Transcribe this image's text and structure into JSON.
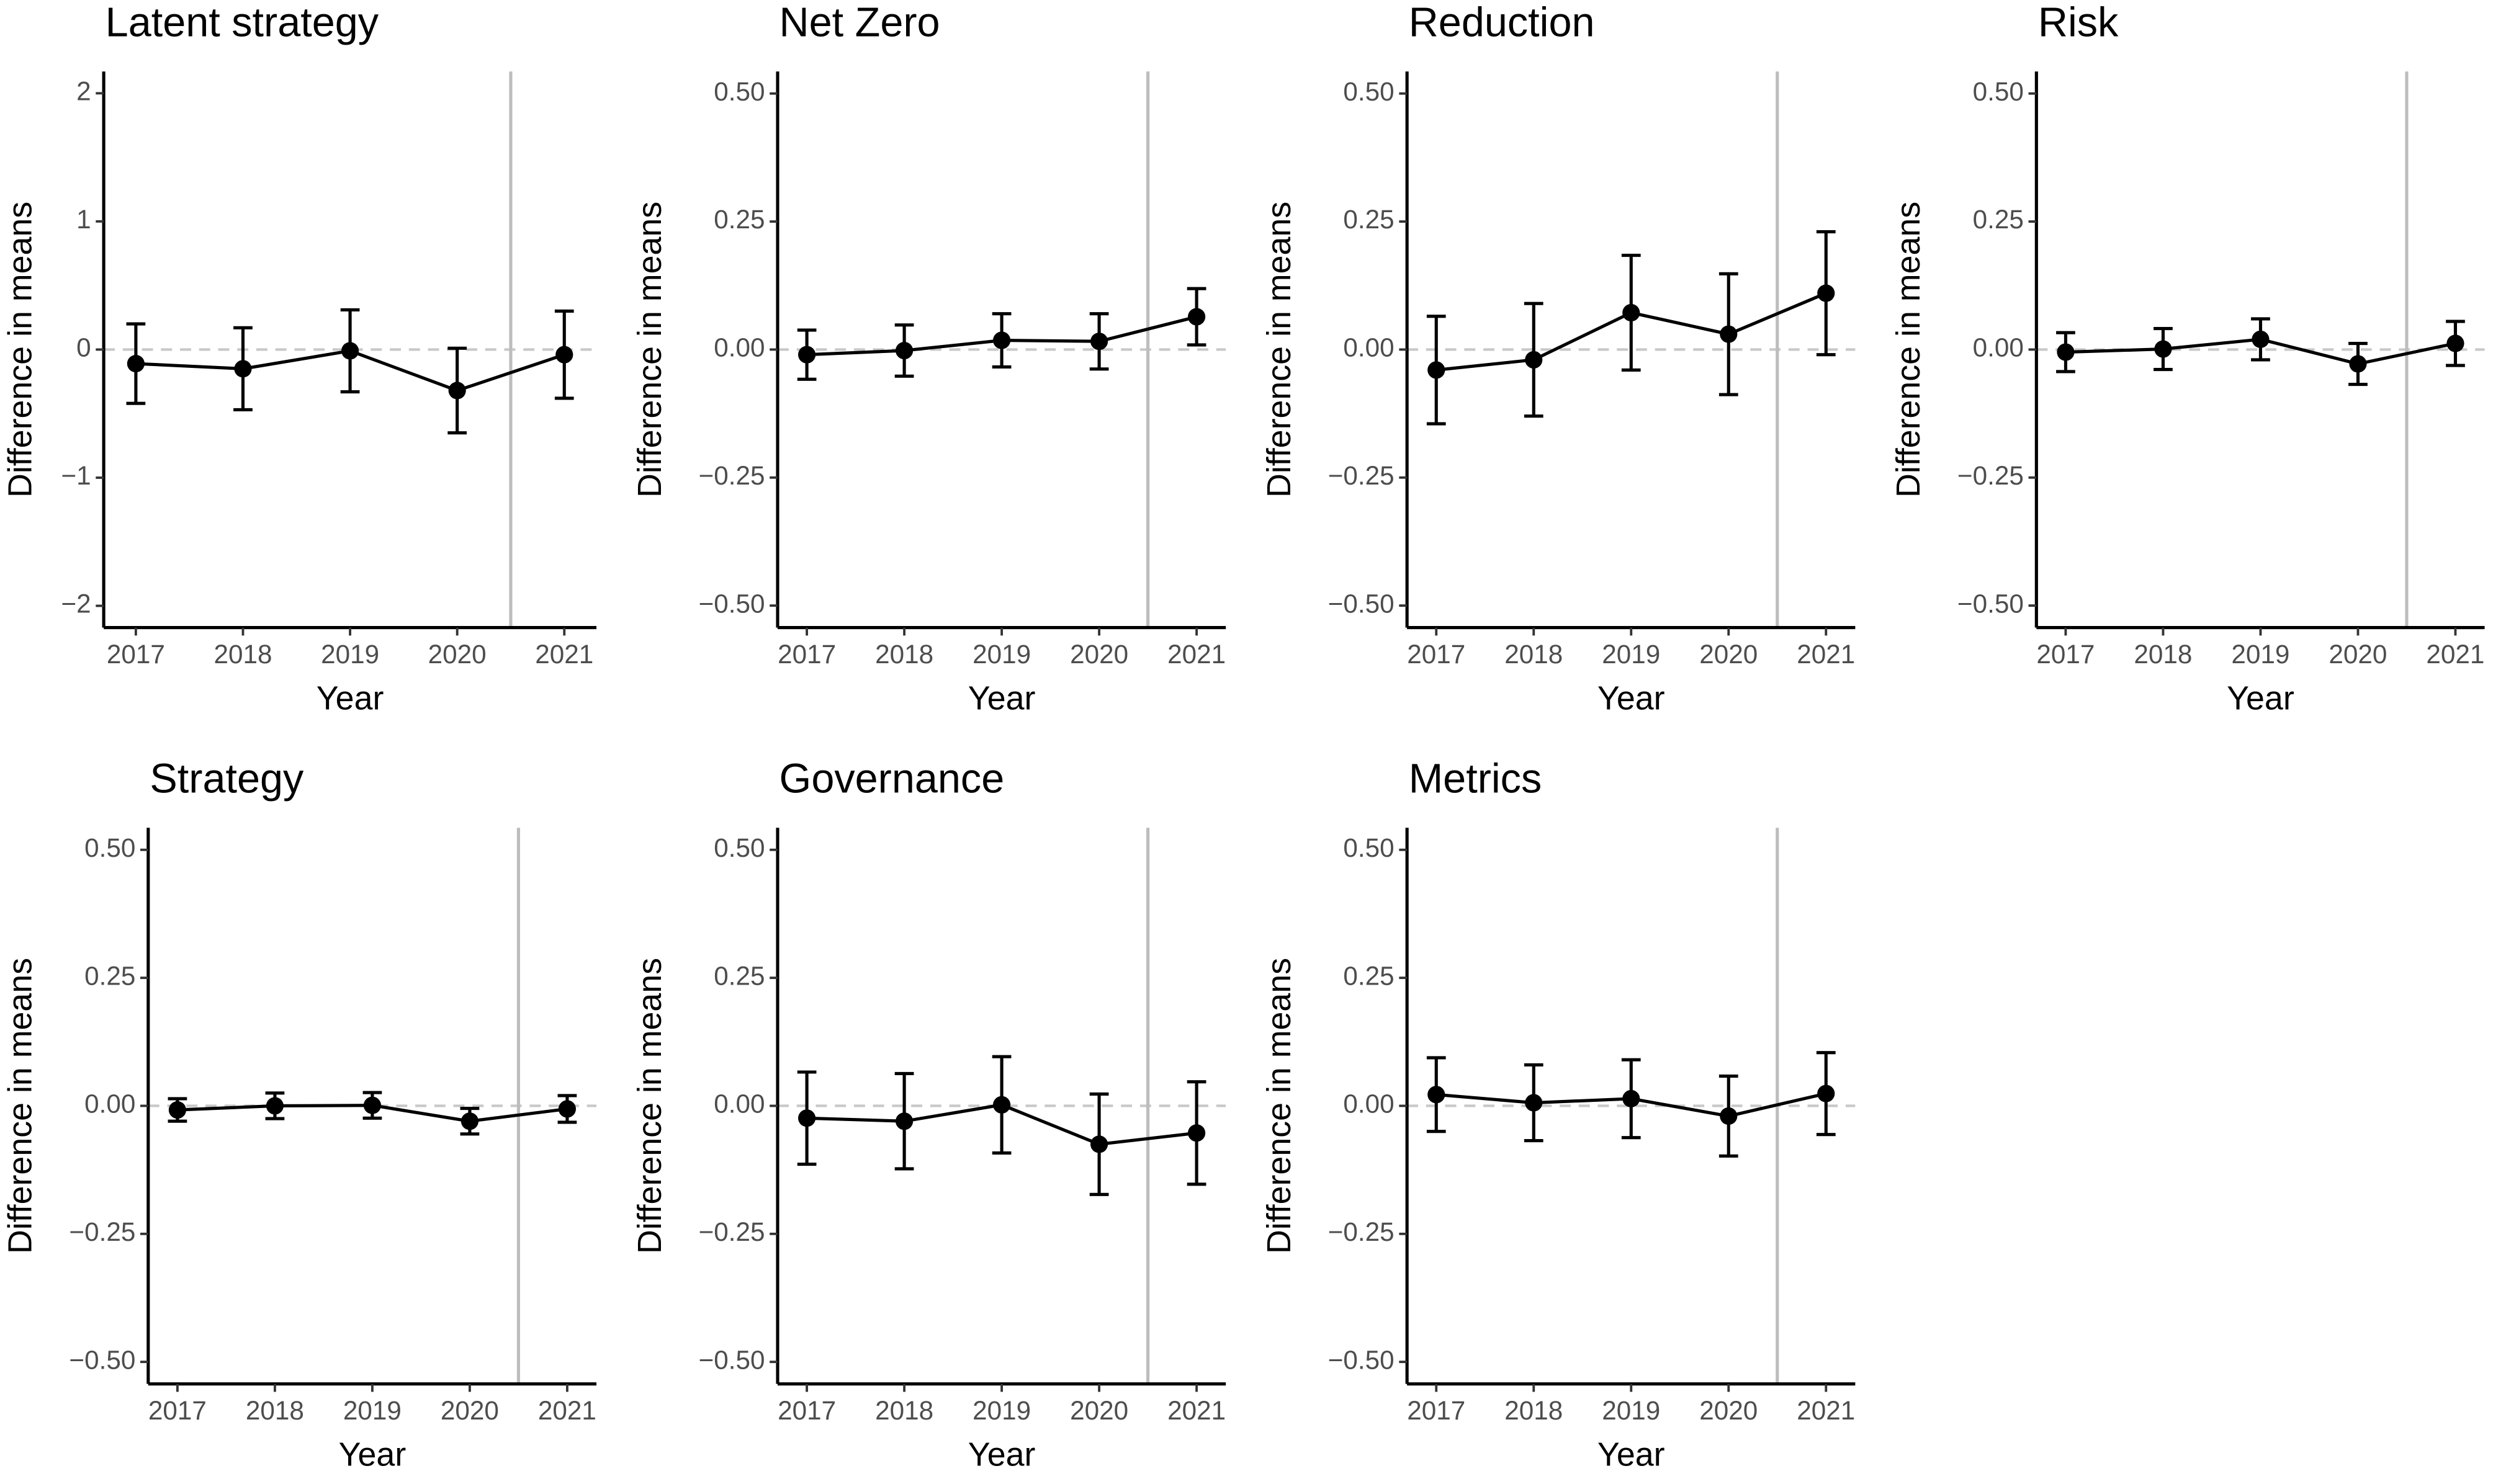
{
  "chart_data": [
    {
      "type": "line",
      "title": "Latent strategy",
      "xlabel": "Year",
      "ylabel": "Difference in means",
      "x": [
        2017,
        2018,
        2019,
        2020,
        2021
      ],
      "values": [
        -0.11,
        -0.15,
        -0.01,
        -0.32,
        -0.04
      ],
      "errors": [
        0.31,
        0.32,
        0.32,
        0.33,
        0.34
      ],
      "color": "#000000",
      "xlim": [
        2016.7,
        2021.3
      ],
      "xticks": [
        2017,
        2018,
        2019,
        2020,
        2021
      ],
      "ylim": [
        -2.17,
        2.17
      ],
      "yticks": [
        {
          "value": -2,
          "label": "−2"
        },
        {
          "value": -1,
          "label": "−1"
        },
        0,
        1,
        2
      ],
      "hline": 0,
      "vline": 2020.5
    },
    {
      "type": "line",
      "title": "Net Zero",
      "xlabel": "Year",
      "ylabel": "Difference in means",
      "x": [
        2017,
        2018,
        2019,
        2020,
        2021
      ],
      "values": [
        -0.01,
        -0.002,
        0.018,
        0.016,
        0.064
      ],
      "errors": [
        0.048,
        0.05,
        0.052,
        0.054,
        0.055
      ],
      "color": "#000000",
      "xlim": [
        2016.7,
        2021.3
      ],
      "xticks": [
        2017,
        2018,
        2019,
        2020,
        2021
      ],
      "ylim": [
        -0.543,
        0.543
      ],
      "yticks": [
        {
          "value": -0.5,
          "label": "−0.50"
        },
        {
          "value": -0.25,
          "label": "−0.25"
        },
        {
          "value": 0,
          "label": "0.00"
        },
        0.25,
        {
          "value": 0.5,
          "label": "0.50"
        }
      ],
      "hline": 0,
      "vline": 2020.5
    },
    {
      "type": "line",
      "title": "Reduction",
      "xlabel": "Year",
      "ylabel": "Difference in means",
      "x": [
        2017,
        2018,
        2019,
        2020,
        2021
      ],
      "values": [
        -0.04,
        -0.02,
        0.072,
        0.03,
        0.11
      ],
      "errors": [
        0.105,
        0.11,
        0.112,
        0.118,
        0.12
      ],
      "color": "#000000",
      "xlim": [
        2016.7,
        2021.3
      ],
      "xticks": [
        2017,
        2018,
        2019,
        2020,
        2021
      ],
      "ylim": [
        -0.543,
        0.543
      ],
      "yticks": [
        {
          "value": -0.5,
          "label": "−0.50"
        },
        {
          "value": -0.25,
          "label": "−0.25"
        },
        {
          "value": 0,
          "label": "0.00"
        },
        0.25,
        {
          "value": 0.5,
          "label": "0.50"
        }
      ],
      "hline": 0,
      "vline": 2020.5
    },
    {
      "type": "line",
      "title": "Risk",
      "xlabel": "Year",
      "ylabel": "Difference in means",
      "x": [
        2017,
        2018,
        2019,
        2020,
        2021
      ],
      "values": [
        -0.005,
        0.001,
        0.02,
        -0.028,
        0.012
      ],
      "errors": [
        0.038,
        0.04,
        0.04,
        0.04,
        0.043
      ],
      "color": "#000000",
      "xlim": [
        2016.7,
        2021.3
      ],
      "xticks": [
        2017,
        2018,
        2019,
        2020,
        2021
      ],
      "ylim": [
        -0.543,
        0.543
      ],
      "yticks": [
        {
          "value": -0.5,
          "label": "−0.50"
        },
        {
          "value": -0.25,
          "label": "−0.25"
        },
        {
          "value": 0,
          "label": "0.00"
        },
        0.25,
        {
          "value": 0.5,
          "label": "0.50"
        }
      ],
      "hline": 0,
      "vline": 2020.5
    },
    {
      "type": "line",
      "title": "Strategy",
      "xlabel": "Year",
      "ylabel": "Difference in means",
      "x": [
        2017,
        2018,
        2019,
        2020,
        2021
      ],
      "values": [
        -0.008,
        0.0,
        0.001,
        -0.03,
        -0.006
      ],
      "errors": [
        0.022,
        0.025,
        0.025,
        0.025,
        0.026
      ],
      "color": "#000000",
      "xlim": [
        2016.7,
        2021.3
      ],
      "xticks": [
        2017,
        2018,
        2019,
        2020,
        2021
      ],
      "ylim": [
        -0.543,
        0.543
      ],
      "yticks": [
        {
          "value": -0.5,
          "label": "−0.50"
        },
        {
          "value": -0.25,
          "label": "−0.25"
        },
        {
          "value": 0,
          "label": "0.00"
        },
        0.25,
        {
          "value": 0.5,
          "label": "0.50"
        }
      ],
      "hline": 0,
      "vline": 2020.5
    },
    {
      "type": "line",
      "title": "Governance",
      "xlabel": "Year",
      "ylabel": "Difference in means",
      "x": [
        2017,
        2018,
        2019,
        2020,
        2021
      ],
      "values": [
        -0.024,
        -0.03,
        0.002,
        -0.075,
        -0.053
      ],
      "errors": [
        0.09,
        0.093,
        0.094,
        0.098,
        0.1
      ],
      "color": "#000000",
      "xlim": [
        2016.7,
        2021.3
      ],
      "xticks": [
        2017,
        2018,
        2019,
        2020,
        2021
      ],
      "ylim": [
        -0.543,
        0.543
      ],
      "yticks": [
        {
          "value": -0.5,
          "label": "−0.50"
        },
        {
          "value": -0.25,
          "label": "−0.25"
        },
        {
          "value": 0,
          "label": "0.00"
        },
        0.25,
        {
          "value": 0.5,
          "label": "0.50"
        }
      ],
      "hline": 0,
      "vline": 2020.5
    },
    {
      "type": "line",
      "title": "Metrics",
      "xlabel": "Year",
      "ylabel": "Difference in means",
      "x": [
        2017,
        2018,
        2019,
        2020,
        2021
      ],
      "values": [
        0.022,
        0.006,
        0.014,
        -0.02,
        0.024
      ],
      "errors": [
        0.072,
        0.074,
        0.076,
        0.078,
        0.08
      ],
      "color": "#000000",
      "xlim": [
        2016.7,
        2021.3
      ],
      "xticks": [
        2017,
        2018,
        2019,
        2020,
        2021
      ],
      "ylim": [
        -0.543,
        0.543
      ],
      "yticks": [
        {
          "value": -0.5,
          "label": "−0.50"
        },
        {
          "value": -0.25,
          "label": "−0.25"
        },
        {
          "value": 0,
          "label": "0.00"
        },
        0.25,
        {
          "value": 0.5,
          "label": "0.50"
        }
      ],
      "hline": 0,
      "vline": 2020.5
    }
  ]
}
